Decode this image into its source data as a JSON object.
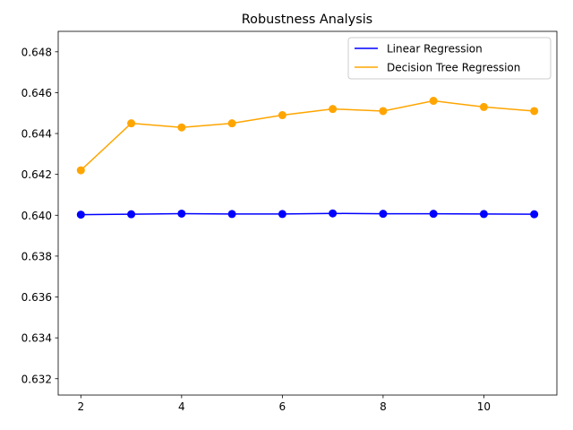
{
  "chart_data": {
    "type": "line",
    "title": "Robustness Analysis",
    "xlabel": "",
    "ylabel": "",
    "x": [
      2,
      3,
      4,
      5,
      6,
      7,
      8,
      9,
      10,
      11
    ],
    "xlim": [
      1.55,
      11.45
    ],
    "ylim": [
      0.6312,
      0.649
    ],
    "xticks": [
      2,
      4,
      6,
      8,
      10
    ],
    "yticks": [
      0.632,
      0.634,
      0.636,
      0.638,
      0.64,
      0.642,
      0.644,
      0.646,
      0.648
    ],
    "grid": false,
    "legend_position": "upper right",
    "series": [
      {
        "name": "Linear Regression",
        "color": "#0000ff",
        "values": [
          0.64003,
          0.64005,
          0.64008,
          0.64006,
          0.64006,
          0.64009,
          0.64007,
          0.64007,
          0.64006,
          0.64005
        ]
      },
      {
        "name": "Decision Tree Regression",
        "color": "#ffa500",
        "values": [
          0.6422,
          0.6445,
          0.6443,
          0.6445,
          0.6449,
          0.6452,
          0.6451,
          0.6456,
          0.6453,
          0.6451
        ]
      }
    ]
  }
}
